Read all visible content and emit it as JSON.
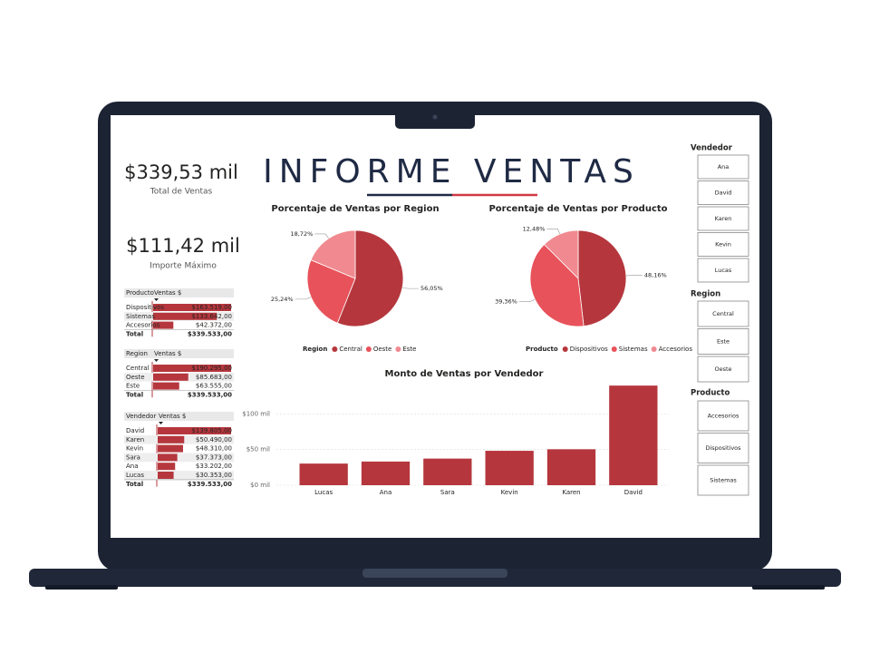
{
  "title": "INFORME VENTAS",
  "kpis": [
    {
      "value": "$339,53 mil",
      "label": "Total de Ventas"
    },
    {
      "value": "$111,42 mil",
      "label": "Importe Máximo"
    }
  ],
  "tables": [
    {
      "header": [
        "Producto",
        "Ventas $"
      ],
      "categories": [
        "Dispositivos",
        "Sistemas",
        "Accesorios"
      ],
      "values": [
        163519,
        133642,
        42372
      ],
      "value_labels": [
        "$163.519,00",
        "$133.642,00",
        "$42.372,00"
      ],
      "total_label": "Total",
      "total": "$339.533,00"
    },
    {
      "header": [
        "Region",
        "Ventas $"
      ],
      "categories": [
        "Central",
        "Oeste",
        "Este"
      ],
      "values": [
        190295,
        85683,
        63555
      ],
      "value_labels": [
        "$190.295,00",
        "$85.683,00",
        "$63.555,00"
      ],
      "total_label": "Total",
      "total": "$339.533,00"
    },
    {
      "header": [
        "Vendedor",
        "Ventas $"
      ],
      "categories": [
        "David",
        "Karen",
        "Kevin",
        "Sara",
        "Ana",
        "Lucas"
      ],
      "values": [
        139805,
        50490,
        48310,
        37373,
        33202,
        30353
      ],
      "value_labels": [
        "$139.805,00",
        "$50.490,00",
        "$48.310,00",
        "$37.373,00",
        "$33.202,00",
        "$30.353,00"
      ],
      "total_label": "Total",
      "total": "$339.533,00"
    }
  ],
  "pies": [
    {
      "type": "pie",
      "title": "Porcentaje de Ventas por Region",
      "legend_title": "Region",
      "categories": [
        "Central",
        "Oeste",
        "Este"
      ],
      "values": [
        56.05,
        25.24,
        18.72
      ],
      "value_labels": [
        "56,05%",
        "25,24%",
        "18,72%"
      ],
      "colors": [
        "#b5373d",
        "#e8525a",
        "#f08a90"
      ]
    },
    {
      "type": "pie",
      "title": "Porcentaje de Ventas por Producto",
      "legend_title": "Producto",
      "categories": [
        "Dispositivos",
        "Sistemas",
        "Accesorios"
      ],
      "values": [
        48.16,
        39.36,
        12.48
      ],
      "value_labels": [
        "48,16%",
        "39,36%",
        "12,48%"
      ],
      "colors": [
        "#b5373d",
        "#e8525a",
        "#f08a90"
      ]
    }
  ],
  "chart_data": {
    "type": "bar",
    "title": "Monto de Ventas por Vendedor",
    "categories": [
      "Lucas",
      "Ana",
      "Sara",
      "Kevin",
      "Karen",
      "David"
    ],
    "values": [
      30.353,
      33.202,
      37.373,
      48.31,
      50.49,
      139.805
    ],
    "color": "#b5373d",
    "ylim": [
      0,
      140
    ],
    "yticks": [
      {
        "value": 0,
        "label": "$0 mil"
      },
      {
        "value": 50,
        "label": "$50 mil"
      },
      {
        "value": 100,
        "label": "$100 mil"
      }
    ],
    "grid": true
  },
  "slicers": [
    {
      "title": "Vendedor",
      "items": [
        "Ana",
        "David",
        "Karen",
        "Kevin",
        "Lucas"
      ]
    },
    {
      "title": "Region",
      "items": [
        "Central",
        "Este",
        "Oeste"
      ]
    },
    {
      "title": "Producto",
      "items": [
        "Accesorios",
        "Dispositivos",
        "Sistemas"
      ]
    }
  ]
}
